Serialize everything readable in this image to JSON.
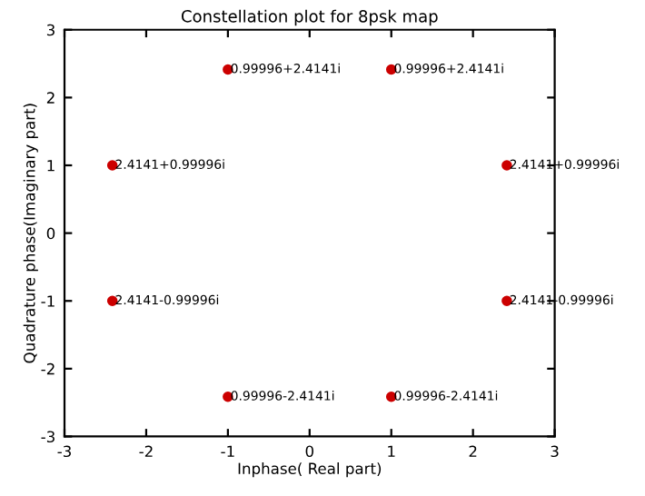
{
  "chart_data": {
    "type": "scatter",
    "title": "Constellation plot for 8psk map",
    "xlabel": "Inphase( Real part)",
    "ylabel": "Quadrature phase(Imaginary part)",
    "x": [
      -0.99996,
      0.99996,
      -2.4141,
      2.4141,
      -2.4141,
      2.4141,
      -0.99996,
      0.99996
    ],
    "values": [
      2.4141,
      2.4141,
      0.99996,
      0.99996,
      -0.99996,
      -0.99996,
      -2.4141,
      -2.4141
    ],
    "value_labels": [
      "0.99996+2.4141i",
      "0.99996+2.4141i",
      "2.4141+0.99996i",
      "2.4141+0.99996i",
      "2.4141-0.99996i",
      "2.4141-0.99996i",
      "0.99996-2.4141i",
      "0.99996-2.4141i"
    ],
    "color": "#cc0000",
    "marker": "circle",
    "xlim": [
      -3,
      3
    ],
    "ylim": [
      -3,
      3
    ],
    "xticks": [
      -3,
      -2,
      -1,
      0,
      1,
      2,
      3
    ],
    "yticks": [
      -3,
      -2,
      -1,
      0,
      1,
      2,
      3
    ],
    "grid": false
  }
}
